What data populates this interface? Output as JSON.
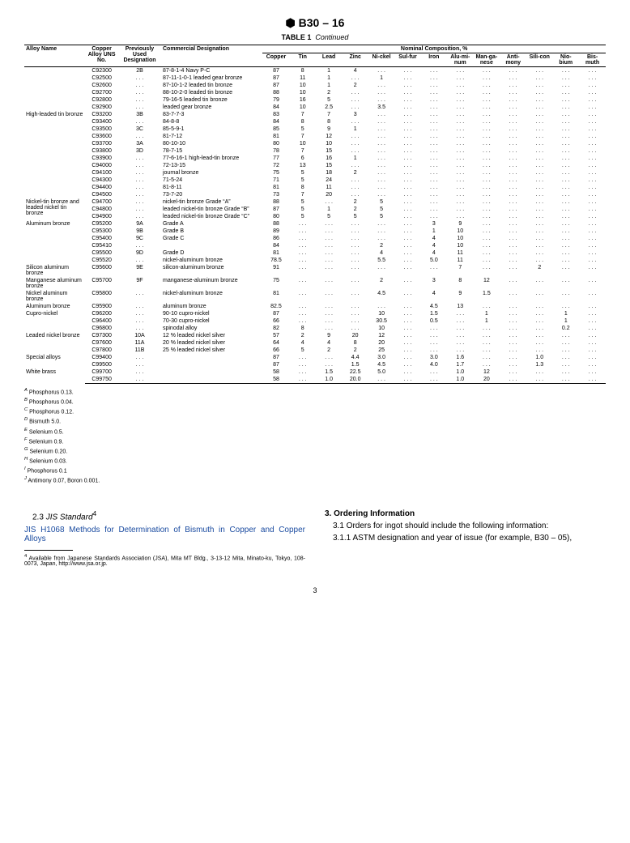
{
  "header": {
    "logo_text": "⬢",
    "standard": "B30 – 16",
    "table_label": "TABLE 1",
    "table_cont": "Continued"
  },
  "columns": {
    "alloy_name": "Alloy Name",
    "uns": "Copper Alloy UNS No.",
    "prev": "Previously Used Designation",
    "comm": "Commercial Designation",
    "nominal_header": "Nominal Composition, %",
    "elems": [
      "Copper",
      "Tin",
      "Lead",
      "Zinc",
      "Ni-ckel",
      "Sul-fur",
      "Iron",
      "Alu-mi-num",
      "Man-ga-nese",
      "Anti-mony",
      "Sili-con",
      "Nio-bium",
      "Bis-muth"
    ]
  },
  "groups": [
    {
      "name": "",
      "rows": [
        {
          "uns": "C92300",
          "prev": "2B",
          "comm": "87-8-1-4 Navy P-C",
          "v": [
            "87",
            "8",
            "1",
            "4",
            ". . .",
            ". . .",
            ". . .",
            ". . .",
            ". . .",
            ". . .",
            ". . .",
            ". . .",
            ". . ."
          ]
        },
        {
          "uns": "C92500",
          "prev": ". . .",
          "comm": "87-11-1-0-1 leaded gear bronze",
          "v": [
            "87",
            "11",
            "1",
            ". . .",
            "1",
            ". . .",
            ". . .",
            ". . .",
            ". . .",
            ". . .",
            ". . .",
            ". . .",
            ". . ."
          ]
        },
        {
          "uns": "C92600",
          "prev": ". . .",
          "comm": "87-10-1-2 leaded tin bronze",
          "v": [
            "87",
            "10",
            "1",
            "2",
            ". . .",
            ". . .",
            ". . .",
            ". . .",
            ". . .",
            ". . .",
            ". . .",
            ". . .",
            ". . ."
          ]
        },
        {
          "uns": "C92700",
          "prev": ". . .",
          "comm": "88-10-2-0 leaded tin bronze",
          "v": [
            "88",
            "10",
            "2",
            ". . .",
            ". . .",
            ". . .",
            ". . .",
            ". . .",
            ". . .",
            ". . .",
            ". . .",
            ". . .",
            ". . ."
          ]
        },
        {
          "uns": "C92800",
          "prev": ". . .",
          "comm": "79-16-5 leaded tin bronze",
          "v": [
            "79",
            "16",
            "5",
            ". . .",
            ". . .",
            ". . .",
            ". . .",
            ". . .",
            ". . .",
            ". . .",
            ". . .",
            ". . .",
            ". . ."
          ]
        },
        {
          "uns": "C92900",
          "prev": ". . .",
          "comm": "leaded gear bronze",
          "v": [
            "84",
            "10",
            "2.5",
            ". . .",
            "3.5",
            ". . .",
            ". . .",
            ". . .",
            ". . .",
            ". . .",
            ". . .",
            ". . .",
            ". . ."
          ]
        }
      ]
    },
    {
      "name": "High-leaded tin bronze",
      "rows": [
        {
          "uns": "C93200",
          "prev": "3B",
          "comm": "83-7-7-3",
          "v": [
            "83",
            "7",
            "7",
            "3",
            ". . .",
            ". . .",
            ". . .",
            ". . .",
            ". . .",
            ". . .",
            ". . .",
            ". . .",
            ". . ."
          ]
        },
        {
          "uns": "C93400",
          "prev": ". . .",
          "comm": "84-8-8",
          "v": [
            "84",
            "8",
            "8",
            ". . .",
            ". . .",
            ". . .",
            ". . .",
            ". . .",
            ". . .",
            ". . .",
            ". . .",
            ". . .",
            ". . ."
          ]
        },
        {
          "uns": "C93500",
          "prev": "3C",
          "comm": "85-5-9-1",
          "v": [
            "85",
            "5",
            "9",
            "1",
            ". . .",
            ". . .",
            ". . .",
            ". . .",
            ". . .",
            ". . .",
            ". . .",
            ". . .",
            ". . ."
          ]
        },
        {
          "uns": "C93600",
          "prev": ". . .",
          "comm": "81-7-12",
          "v": [
            "81",
            "7",
            "12",
            ". . .",
            ". . .",
            ". . .",
            ". . .",
            ". . .",
            ". . .",
            ". . .",
            ". . .",
            ". . .",
            ". . ."
          ]
        },
        {
          "uns": "C93700",
          "prev": "3A",
          "comm": "80-10-10",
          "v": [
            "80",
            "10",
            "10",
            ". . .",
            ". . .",
            ". . .",
            ". . .",
            ". . .",
            ". . .",
            ". . .",
            ". . .",
            ". . .",
            ". . ."
          ]
        },
        {
          "uns": "C93800",
          "prev": "3D",
          "comm": "78-7-15",
          "v": [
            "78",
            "7",
            "15",
            ". . .",
            ". . .",
            ". . .",
            ". . .",
            ". . .",
            ". . .",
            ". . .",
            ". . .",
            ". . .",
            ". . ."
          ]
        },
        {
          "uns": "C93900",
          "prev": ". . .",
          "comm": "77-6-16-1 high-lead-tin bronze",
          "v": [
            "77",
            "6",
            "16",
            "1",
            ". . .",
            ". . .",
            ". . .",
            ". . .",
            ". . .",
            ". . .",
            ". . .",
            ". . .",
            ". . ."
          ]
        },
        {
          "uns": "C94000",
          "prev": ". . .",
          "comm": "72-13-15",
          "v": [
            "72",
            "13",
            "15",
            ". . .",
            ". . .",
            ". . .",
            ". . .",
            ". . .",
            ". . .",
            ". . .",
            ". . .",
            ". . .",
            ". . ."
          ]
        },
        {
          "uns": "C94100",
          "prev": ". . .",
          "comm": "journal bronze",
          "v": [
            "75",
            "5",
            "18",
            "2",
            ". . .",
            ". . .",
            ". . .",
            ". . .",
            ". . .",
            ". . .",
            ". . .",
            ". . .",
            ". . ."
          ]
        },
        {
          "uns": "C94300",
          "prev": ". . .",
          "comm": "71-5-24",
          "v": [
            "71",
            "5",
            "24",
            ". . .",
            ". . .",
            ". . .",
            ". . .",
            ". . .",
            ". . .",
            ". . .",
            ". . .",
            ". . .",
            ". . ."
          ]
        },
        {
          "uns": "C94400",
          "prev": ". . .",
          "comm": "81-8-11",
          "v": [
            "81",
            "8",
            "11",
            ". . .",
            ". . .",
            ". . .",
            ". . .",
            ". . .",
            ". . .",
            ". . .",
            ". . .",
            ". . .",
            ". . ."
          ]
        },
        {
          "uns": "C94500",
          "prev": ". . .",
          "comm": "73-7-20",
          "v": [
            "73",
            "7",
            "20",
            ". . .",
            ". . .",
            ". . .",
            ". . .",
            ". . .",
            ". . .",
            ". . .",
            ". . .",
            ". . .",
            ". . ."
          ]
        }
      ]
    },
    {
      "name": "Nickel-tin bronze and leaded nickel tin bronze",
      "rows": [
        {
          "uns": "C94700",
          "prev": ". . .",
          "comm": "nickel-tin bronze Grade “A”",
          "v": [
            "88",
            "5",
            ". . .",
            "2",
            "5",
            ". . .",
            ". . .",
            ". . .",
            ". . .",
            ". . .",
            ". . .",
            ". . .",
            ". . ."
          ]
        },
        {
          "uns": "C94800",
          "prev": ". . .",
          "comm": "leaded nickel-tin bronze Grade “B”",
          "v": [
            "87",
            "5",
            "1",
            "2",
            "5",
            ". . .",
            ". . .",
            ". . .",
            ". . .",
            ". . .",
            ". . .",
            ". . .",
            ". . ."
          ]
        },
        {
          "uns": "C94900",
          "prev": ". . .",
          "comm": "leaded nickel-tin bronze Grade “C”",
          "v": [
            "80",
            "5",
            "5",
            "5",
            "5",
            ". . .",
            ". . .",
            ". . .",
            ". . .",
            ". . .",
            ". . .",
            ". . .",
            ". . ."
          ]
        }
      ]
    },
    {
      "name": "Aluminum bronze",
      "rows": [
        {
          "uns": "C95200",
          "prev": "9A",
          "comm": "Grade A",
          "v": [
            "88",
            ". . .",
            ". . .",
            ". . .",
            ". . .",
            ". . .",
            "3",
            "9",
            ". . .",
            ". . .",
            ". . .",
            ". . .",
            ". . ."
          ]
        },
        {
          "uns": "C95300",
          "prev": "9B",
          "comm": "Grade B",
          "v": [
            "89",
            ". . .",
            ". . .",
            ". . .",
            ". . .",
            ". . .",
            "1",
            "10",
            ". . .",
            ". . .",
            ". . .",
            ". . .",
            ". . ."
          ]
        },
        {
          "uns": "C95400",
          "prev": "9C",
          "comm": "Grade C",
          "v": [
            "86",
            ". . .",
            ". . .",
            ". . .",
            ". . .",
            ". . .",
            "4",
            "10",
            ". . .",
            ". . .",
            ". . .",
            ". . .",
            ". . ."
          ]
        },
        {
          "uns": "C95410",
          "prev": ". . .",
          "comm": "",
          "v": [
            "84",
            ". . .",
            ". . .",
            ". . .",
            "2",
            ". . .",
            "4",
            "10",
            ". . .",
            ". . .",
            ". . .",
            ". . .",
            ". . ."
          ]
        },
        {
          "uns": "C95500",
          "prev": "9D",
          "comm": "Grade D",
          "v": [
            "81",
            ". . .",
            ". . .",
            ". . .",
            "4",
            ". . .",
            "4",
            "11",
            ". . .",
            ". . .",
            ". . .",
            ". . .",
            ". . ."
          ]
        },
        {
          "uns": "C95520",
          "prev": ". . .",
          "comm": "nickel-aluminum bronze",
          "v": [
            "78.5",
            ". . .",
            ". . .",
            ". . .",
            "5.5",
            ". . .",
            "5.0",
            "11",
            ". . .",
            ". . .",
            ". . .",
            ". . .",
            ". . ."
          ]
        }
      ]
    },
    {
      "name": "Silicon aluminum bronze",
      "rows": [
        {
          "uns": "C95600",
          "prev": "9E",
          "comm": "silicon-aluminum bronze",
          "v": [
            "91",
            ". . .",
            ". . .",
            ". . .",
            ". . .",
            ". . .",
            ". . .",
            "7",
            ". . .",
            ". . .",
            "2",
            ". . .",
            ". . ."
          ]
        }
      ]
    },
    {
      "name": "Manganese aluminum bronze",
      "rows": [
        {
          "uns": "C95700",
          "prev": "9F",
          "comm": "manganese-aluminum bronze",
          "v": [
            "75",
            ". . .",
            ". . .",
            ". . .",
            "2",
            ". . .",
            "3",
            "8",
            "12",
            ". . .",
            ". . .",
            ". . .",
            ". . ."
          ]
        }
      ]
    },
    {
      "name": "Nickel aluminum bronze",
      "rows": [
        {
          "uns": "C95800",
          "prev": ". . .",
          "comm": "nickel-aluminum bronze",
          "v": [
            "81",
            ". . .",
            ". . .",
            ". . .",
            "4.5",
            ". . .",
            "4",
            "9",
            "1.5",
            ". . .",
            ". . .",
            ". . .",
            ". . ."
          ]
        }
      ]
    },
    {
      "name": "Aluminum bronze",
      "rows": [
        {
          "uns": "C95900",
          "prev": ". . .",
          "comm": "aluminum bronze",
          "v": [
            "82.5",
            ". . .",
            ". . .",
            ". . .",
            ". . .",
            ". . .",
            "4.5",
            "13",
            ". . .",
            ". . .",
            ". . .",
            ". . .",
            ". . ."
          ]
        }
      ]
    },
    {
      "name": "Cupro-nickel",
      "rows": [
        {
          "uns": "C96200",
          "prev": ". . .",
          "comm": "90-10 cupro-nickel",
          "v": [
            "87",
            ". . .",
            ". . .",
            ". . .",
            "10",
            ". . .",
            "1.5",
            ". . .",
            "1",
            ". . .",
            ". . .",
            "1",
            ". . ."
          ]
        },
        {
          "uns": "C96400",
          "prev": ". . .",
          "comm": "70-30 cupro-nickel",
          "v": [
            "66",
            ". . .",
            ". . .",
            ". . .",
            "30.5",
            ". . .",
            "0.5",
            ". . .",
            "1",
            ". . .",
            ". . .",
            "1",
            ". . ."
          ]
        },
        {
          "uns": "C96800",
          "prev": ". . .",
          "comm": "spinodal alloy",
          "v": [
            "82",
            "8",
            ". . .",
            ". . .",
            "10",
            ". . .",
            ". . .",
            ". . .",
            ". . .",
            ". . .",
            ". . .",
            "0.2",
            ". . ."
          ]
        }
      ]
    },
    {
      "name": "Leaded nickel bronze",
      "rows": [
        {
          "uns": "C97300",
          "prev": "10A",
          "comm": "12 % leaded nickel silver",
          "v": [
            "57",
            "2",
            "9",
            "20",
            "12",
            ". . .",
            ". . .",
            ". . .",
            ". . .",
            ". . .",
            ". . .",
            ". . .",
            ". . ."
          ]
        },
        {
          "uns": "C97600",
          "prev": "11A",
          "comm": "20 % leaded nickel silver",
          "v": [
            "64",
            "4",
            "4",
            "8",
            "20",
            ". . .",
            ". . .",
            ". . .",
            ". . .",
            ". . .",
            ". . .",
            ". . .",
            ". . ."
          ]
        },
        {
          "uns": "C97800",
          "prev": "11B",
          "comm": "25 % leaded nickel silver",
          "v": [
            "66",
            "5",
            "2",
            "2",
            "25",
            ". . .",
            ". . .",
            ". . .",
            ". . .",
            ". . .",
            ". . .",
            ". . .",
            ". . ."
          ]
        }
      ]
    },
    {
      "name": "Special alloys",
      "rows": [
        {
          "uns": "C99400",
          "prev": ". . .",
          "comm": "",
          "v": [
            "87",
            ". . .",
            ". . .",
            "4.4",
            "3.0",
            ". . .",
            "3.0",
            "1.6",
            ". . .",
            ". . .",
            "1.0",
            ". . .",
            ". . ."
          ]
        },
        {
          "uns": "C99500",
          "prev": ". . .",
          "comm": "",
          "v": [
            "87",
            ". . .",
            ". . .",
            "1.5",
            "4.5",
            ". . .",
            "4.0",
            "1.7",
            ". . .",
            ". . .",
            "1.3",
            ". . .",
            ". . ."
          ]
        }
      ]
    },
    {
      "name": "White brass",
      "rows": [
        {
          "uns": "C99700",
          "prev": ". . .",
          "comm": "",
          "v": [
            "58",
            ". . .",
            "1.5",
            "22.5",
            "5.0",
            ". . .",
            ". . .",
            "1.0",
            "12",
            ". . .",
            ". . .",
            ". . .",
            ". . ."
          ]
        },
        {
          "uns": "C99750",
          "prev": ". . .",
          "comm": "",
          "v": [
            "58",
            ". . .",
            "1.0",
            "20.0",
            ". . .",
            ". . .",
            ". . .",
            "1.0",
            "20",
            ". . .",
            ". . .",
            ". . .",
            ". . ."
          ]
        }
      ]
    }
  ],
  "footnotes": [
    {
      "sup": "A",
      "text": "Phosphorus 0.13."
    },
    {
      "sup": "B",
      "text": "Phosphorus 0.04."
    },
    {
      "sup": "C",
      "text": "Phosphorus 0.12."
    },
    {
      "sup": "D",
      "text": "Bismuth 5.0."
    },
    {
      "sup": "E",
      "text": "Selenium 0.5."
    },
    {
      "sup": "F",
      "text": "Selenium 0.9."
    },
    {
      "sup": "G",
      "text": "Selenium 0.20."
    },
    {
      "sup": "H",
      "text": "Selenium 0.03."
    },
    {
      "sup": "I",
      "text": "Phosphorus 0.1"
    },
    {
      "sup": "J",
      "text": "Antimony 0.07, Boron 0.001."
    }
  ],
  "body": {
    "left": {
      "sec": "2.3",
      "sec_title": "JIS Standard",
      "sup": "4",
      "link": "JIS H1068",
      "link_text": " Methods for Determination of Bismuth in Copper and Copper Alloys",
      "foot_sup": "4",
      "foot_text": " Available from Japanese Standards Association (JSA), Mita MT Bldg., 3-13-12 Mita, Minato-ku, Tokyo, 108-0073, Japan, http://www.jsa.or.jp."
    },
    "right": {
      "h": "3. Ordering Information",
      "p1": "3.1 Orders for ingot should include the following information:",
      "p2": "3.1.1 ASTM designation and year of issue (for example, B30 – 05),"
    }
  },
  "pagenum": "3"
}
